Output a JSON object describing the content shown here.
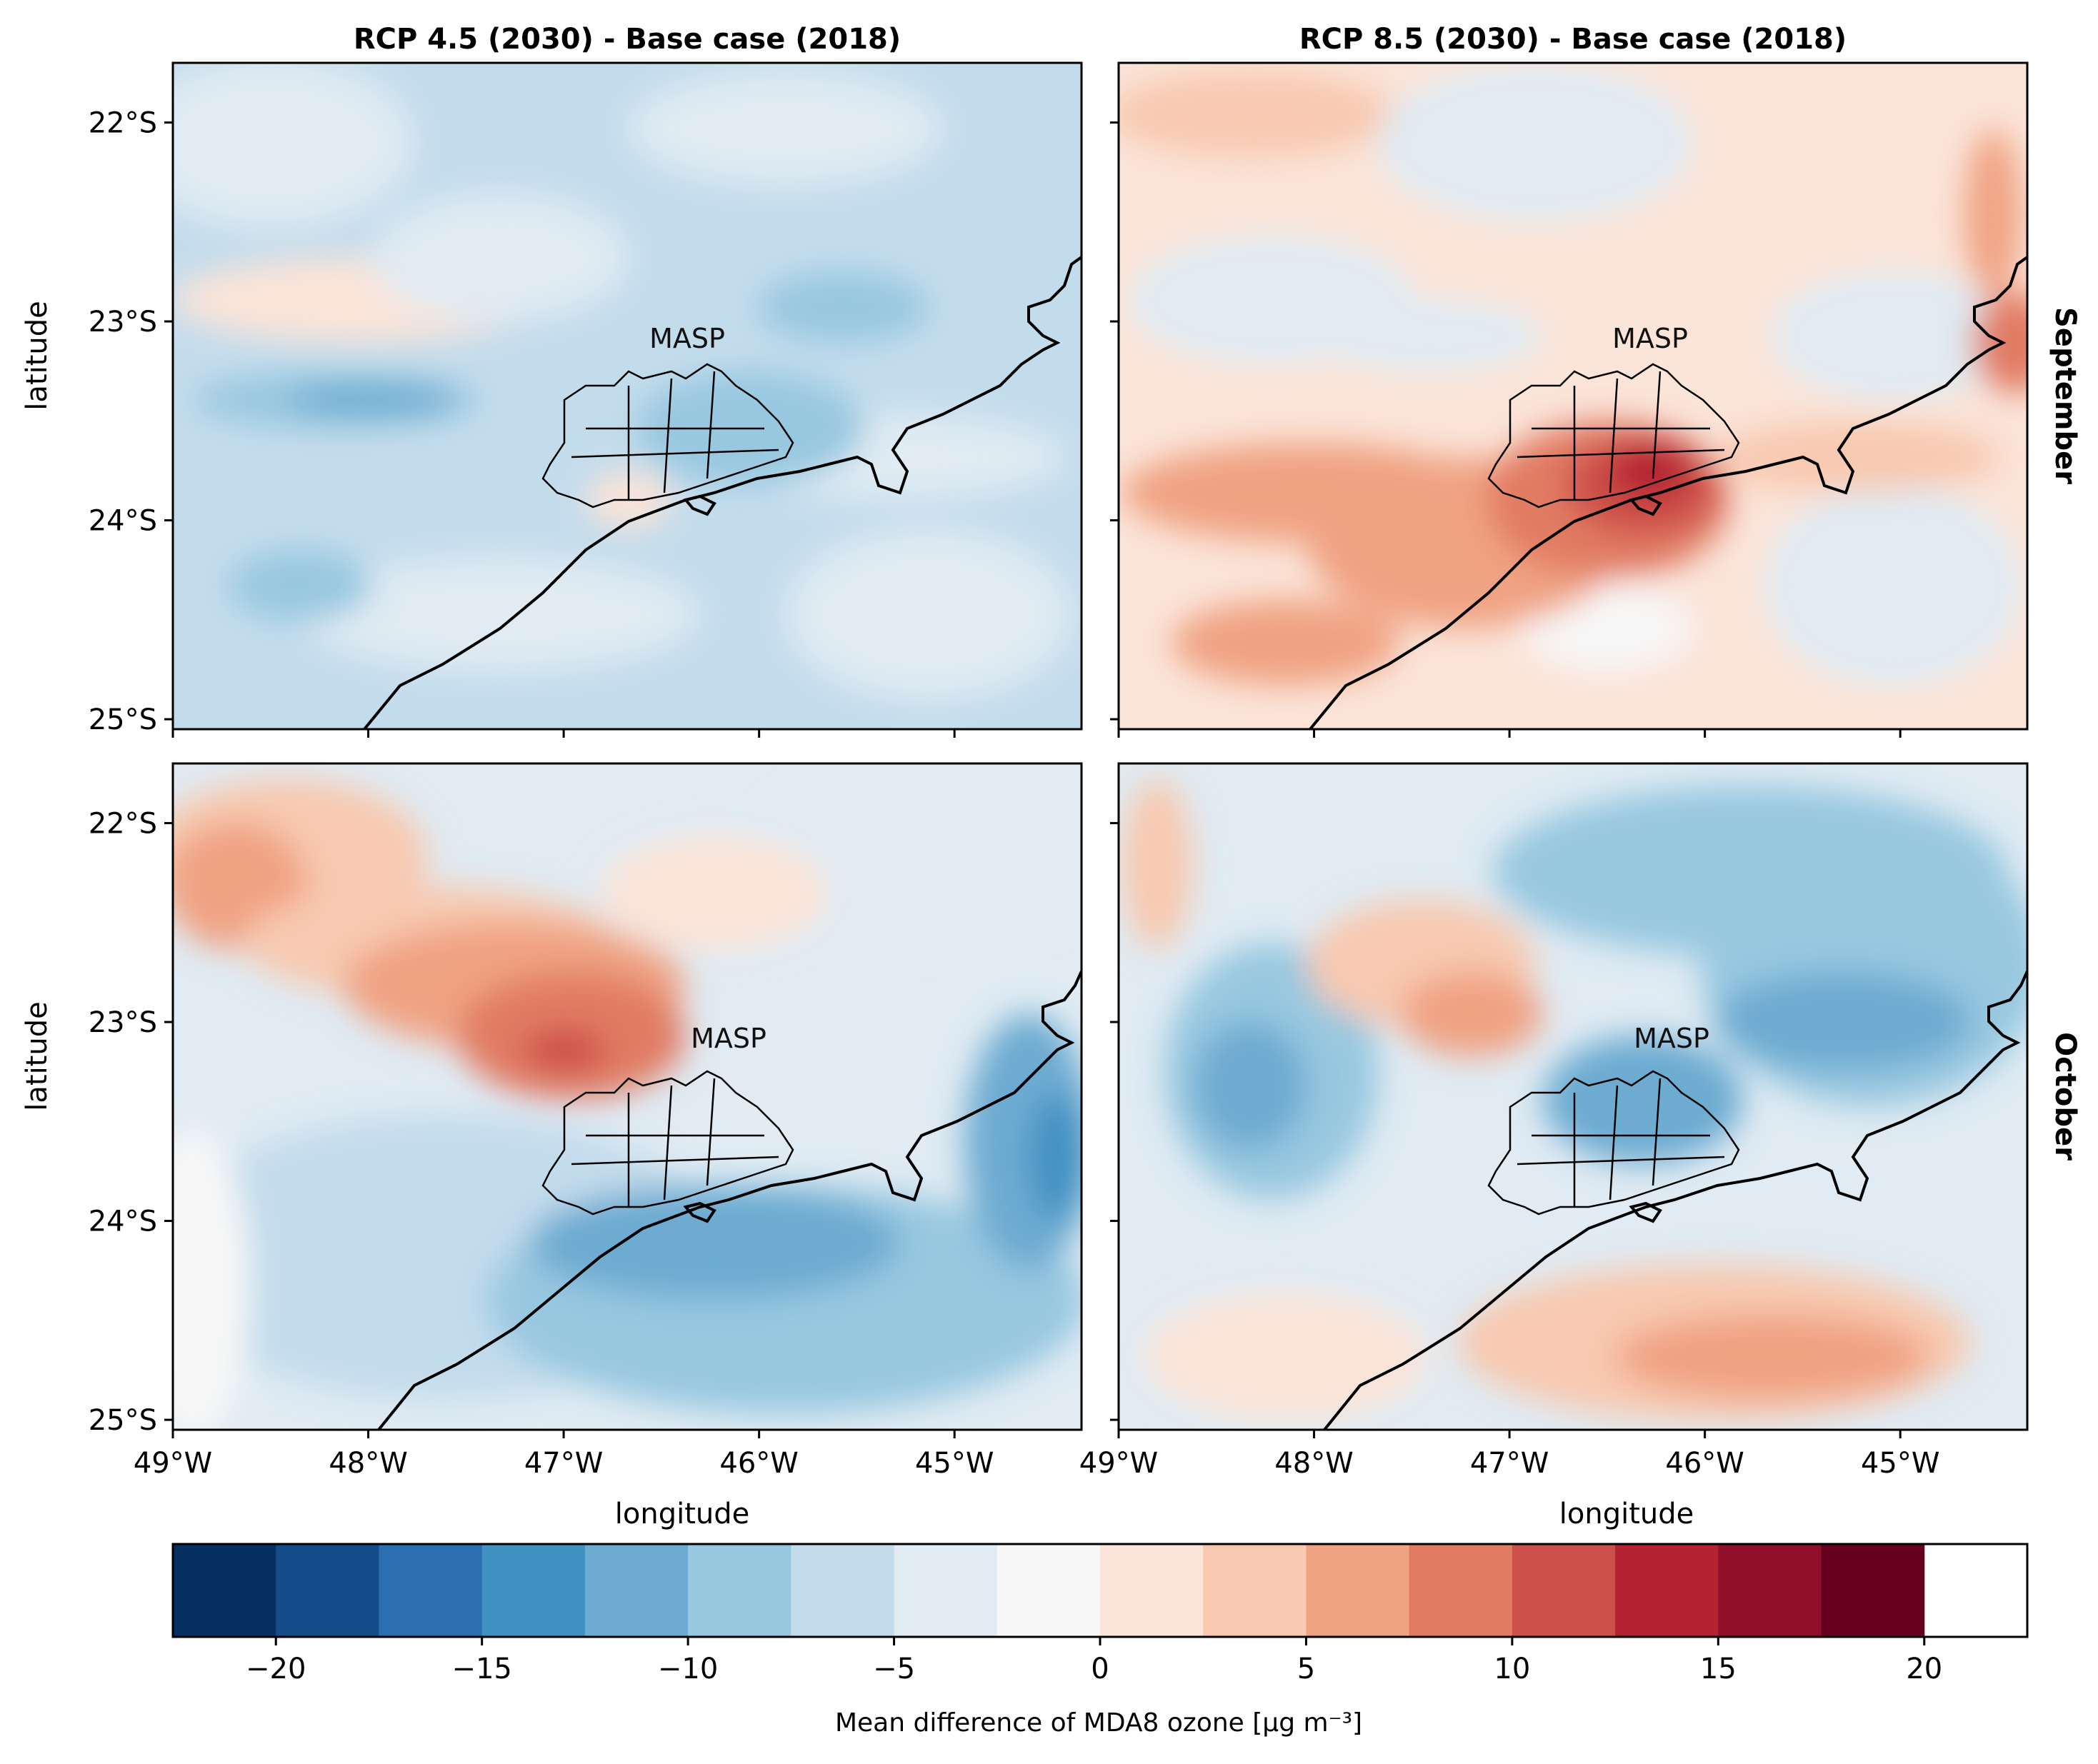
{
  "chart_data": {
    "type": "heatmap",
    "colorbar": {
      "label": "Mean difference of MDA8 ozone [μg m⁻³]",
      "ticks": [
        -20,
        -15,
        -10,
        -5,
        0,
        5,
        10,
        15,
        20
      ],
      "tick_labels": [
        "−20",
        "−15",
        "−10",
        "−5",
        "0",
        "5",
        "10",
        "15",
        "20"
      ],
      "range": [
        -22.5,
        22.5
      ],
      "levels": [
        -22.5,
        -20,
        -17.5,
        -15,
        -12.5,
        -10,
        -7.5,
        -5,
        -2.5,
        0,
        2.5,
        5,
        7.5,
        10,
        12.5,
        15,
        17.5,
        20,
        22.5
      ],
      "colors": [
        "#053061",
        "#134c88",
        "#2c6fb0",
        "#4291c3",
        "#6dabd1",
        "#98c8e0",
        "#c3dcec",
        "#e0ebf3",
        "#f7f7f7",
        "#fbe4d8",
        "#f8c9b0",
        "#f0a383",
        "#e17c63",
        "#cd4f4a",
        "#b52232",
        "#920f2c",
        "#67001f"
      ]
    },
    "columns": [
      "RCP 4.5 (2030) - Base case (2018)",
      "RCP 8.5 (2030) - Base case (2018)"
    ],
    "rows": [
      "September",
      "October"
    ],
    "xlabel": "longitude",
    "ylabel": "latitude",
    "xticks": [
      "49°W",
      "48°W",
      "47°W",
      "46°W",
      "45°W"
    ],
    "yticks": [
      "22°S",
      "23°S",
      "24°S",
      "25°S"
    ],
    "xlim": [
      -49,
      -44.35
    ],
    "ylim": [
      -25.05,
      -21.7
    ],
    "annotation": "MASP",
    "panels": [
      {
        "column": "RCP 4.5 (2030) - Base case (2018)",
        "row": "September",
        "mean_pattern": "mostly negative (-2.5 to -10), strongest west-northwest of MASP"
      },
      {
        "column": "RCP 8.5 (2030) - Base case (2018)",
        "row": "September",
        "mean_pattern": "mostly positive (2.5 to 10), maximum >15 over MASP"
      },
      {
        "column": "RCP 4.5 (2030) - Base case (2018)",
        "row": "October",
        "mean_pattern": "positive band NW of MASP (up to ~15), negative over ocean"
      },
      {
        "column": "RCP 8.5 (2030) - Base case (2018)",
        "row": "October",
        "mean_pattern": "negative east and west, positive band NW of MASP and over southern ocean"
      }
    ]
  }
}
